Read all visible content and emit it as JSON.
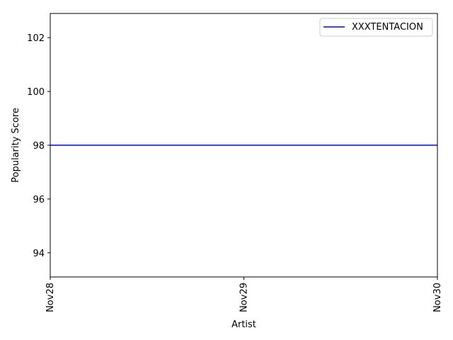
{
  "chart_data": {
    "type": "line",
    "title": "",
    "xlabel": "Artist",
    "ylabel": "Popularity Score",
    "categories": [
      "Nov28",
      "Nov29",
      "Nov30"
    ],
    "series": [
      {
        "name": "XXXTENTACION",
        "values": [
          98,
          98,
          98
        ],
        "color": "#0000ff"
      }
    ],
    "ylim": [
      93.1,
      102.9
    ],
    "yticks": [
      94,
      96,
      98,
      100,
      102
    ],
    "xtick_rotation": "vertical",
    "grid": false,
    "legend_position": "top-right"
  }
}
